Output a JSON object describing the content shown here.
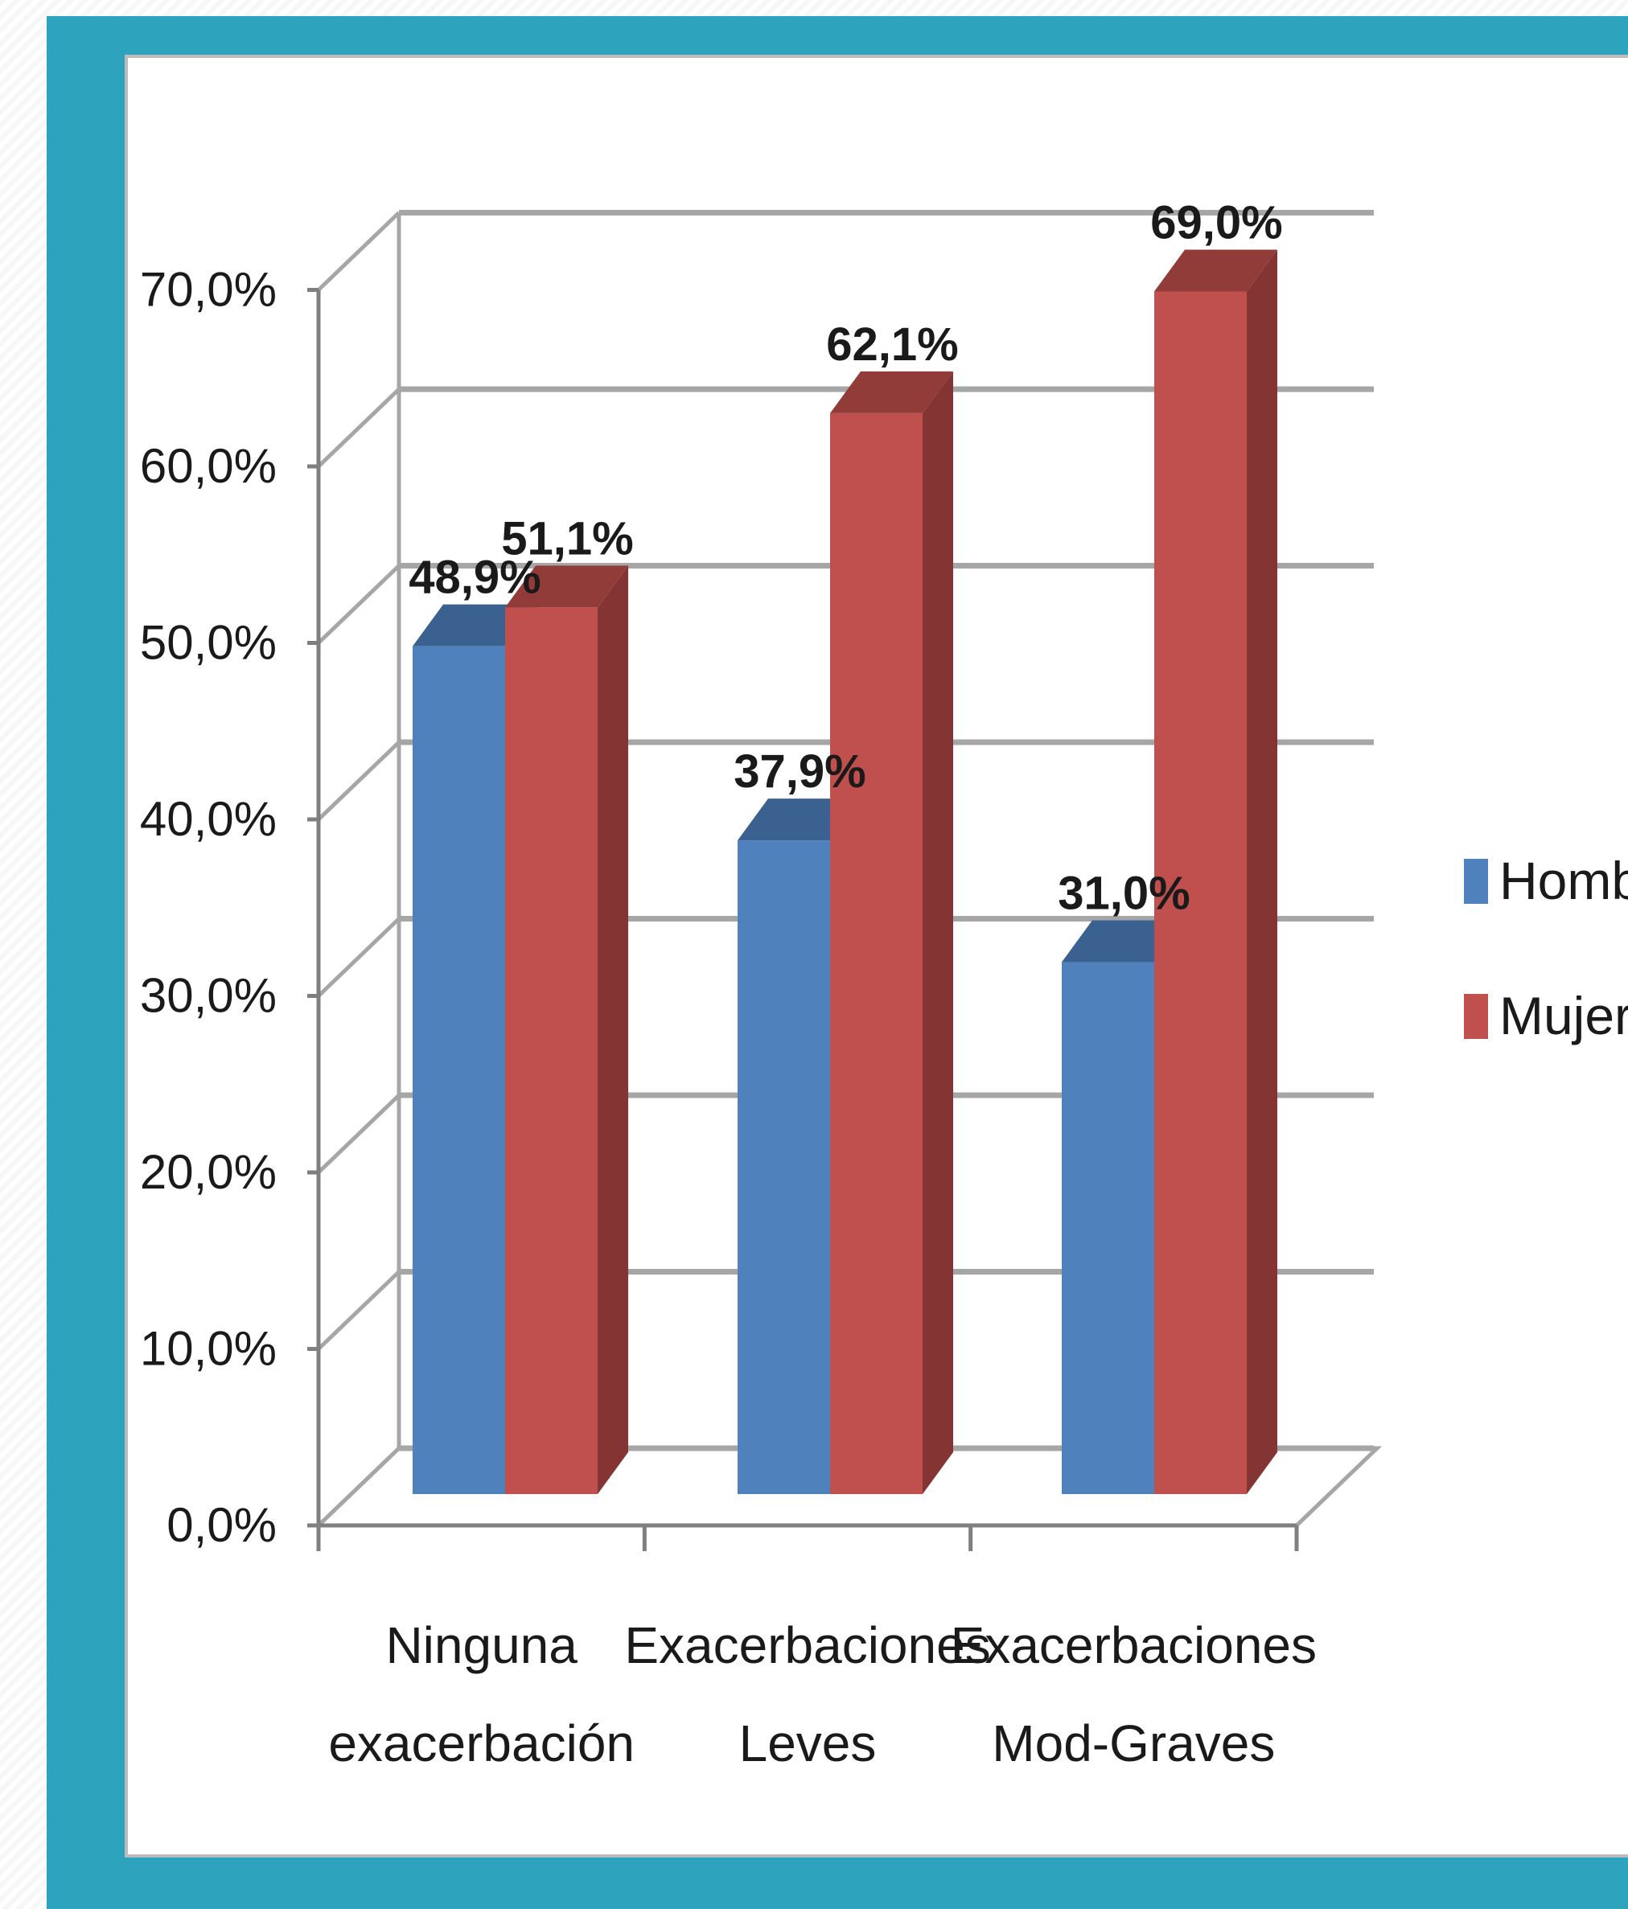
{
  "chart_data": {
    "type": "bar",
    "categories": [
      [
        "Ninguna",
        "exacerbación"
      ],
      [
        "Exacerbaciones",
        "Leves"
      ],
      [
        "Exacerbaciones",
        "Mod-Graves"
      ]
    ],
    "series": [
      {
        "name": "Hombre",
        "values": [
          48.9,
          37.9,
          31.0
        ],
        "labels": [
          "48,9%",
          "37,9%",
          "31,0%"
        ],
        "color": "#4f81bd"
      },
      {
        "name": "Mujer",
        "values": [
          51.1,
          62.1,
          69.0
        ],
        "labels": [
          "51,1%",
          "62,1%",
          "69,0%"
        ],
        "color": "#c0504d"
      }
    ],
    "yticks": [
      "0,0%",
      "10,0%",
      "20,0%",
      "30,0%",
      "40,0%",
      "50,0%",
      "60,0%",
      "70,0%"
    ],
    "ylim": [
      0,
      70
    ],
    "grid": true,
    "style": "3d-clustered-column",
    "legend_position": "right"
  },
  "colors": {
    "frame": "#2ea3bd",
    "gridline": "#a6a6a6",
    "hombre_side": "#3a5f8d",
    "mujer_side": "#843533"
  }
}
